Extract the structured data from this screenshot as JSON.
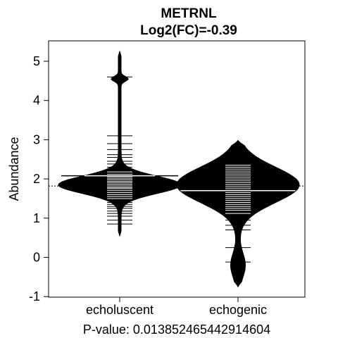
{
  "chart_data": {
    "type": "beanplot",
    "title": "METRNL",
    "subtitle": "Log2(FC)=-0.39",
    "xlabel": "P-value: 0.013852465442914604",
    "ylabel": "Abundance",
    "ylim": [
      -1,
      5.4
    ],
    "yticks": [
      -1,
      0,
      1,
      2,
      3,
      4,
      5
    ],
    "overall_mean": 1.82,
    "categories": [
      "echoluscent",
      "echogenic"
    ],
    "series": [
      {
        "category": "echoluscent",
        "mean": 2.08,
        "density_range": [
          0.55,
          5.25
        ],
        "modes": [
          [
            1.85,
            0.22,
            1.0
          ],
          [
            4.55,
            0.06,
            0.12
          ]
        ],
        "points": [
          0.85,
          0.95,
          1.05,
          1.12,
          1.18,
          1.25,
          1.3,
          1.35,
          1.4,
          1.45,
          1.5,
          1.55,
          1.6,
          1.65,
          1.7,
          1.75,
          1.78,
          1.82,
          1.86,
          1.9,
          1.94,
          1.98,
          2.02,
          2.06,
          2.12,
          2.18,
          2.25,
          2.3,
          2.38,
          2.45,
          2.55,
          2.62,
          2.75,
          2.9,
          3.1,
          4.6
        ]
      },
      {
        "category": "echogenic",
        "mean": 1.7,
        "density_range": [
          -0.75,
          2.98
        ],
        "modes": [
          [
            1.85,
            0.45,
            1.0
          ],
          [
            -0.2,
            0.3,
            0.1
          ]
        ],
        "points": [
          -0.12,
          0.25,
          0.7,
          0.82,
          0.95,
          1.05,
          1.12,
          1.2,
          1.25,
          1.3,
          1.35,
          1.4,
          1.45,
          1.5,
          1.55,
          1.6,
          1.65,
          1.7,
          1.75,
          1.8,
          1.85,
          1.9,
          1.95,
          2.0,
          2.05,
          2.1,
          2.15,
          2.2,
          2.25,
          2.3,
          2.35
        ]
      }
    ]
  }
}
